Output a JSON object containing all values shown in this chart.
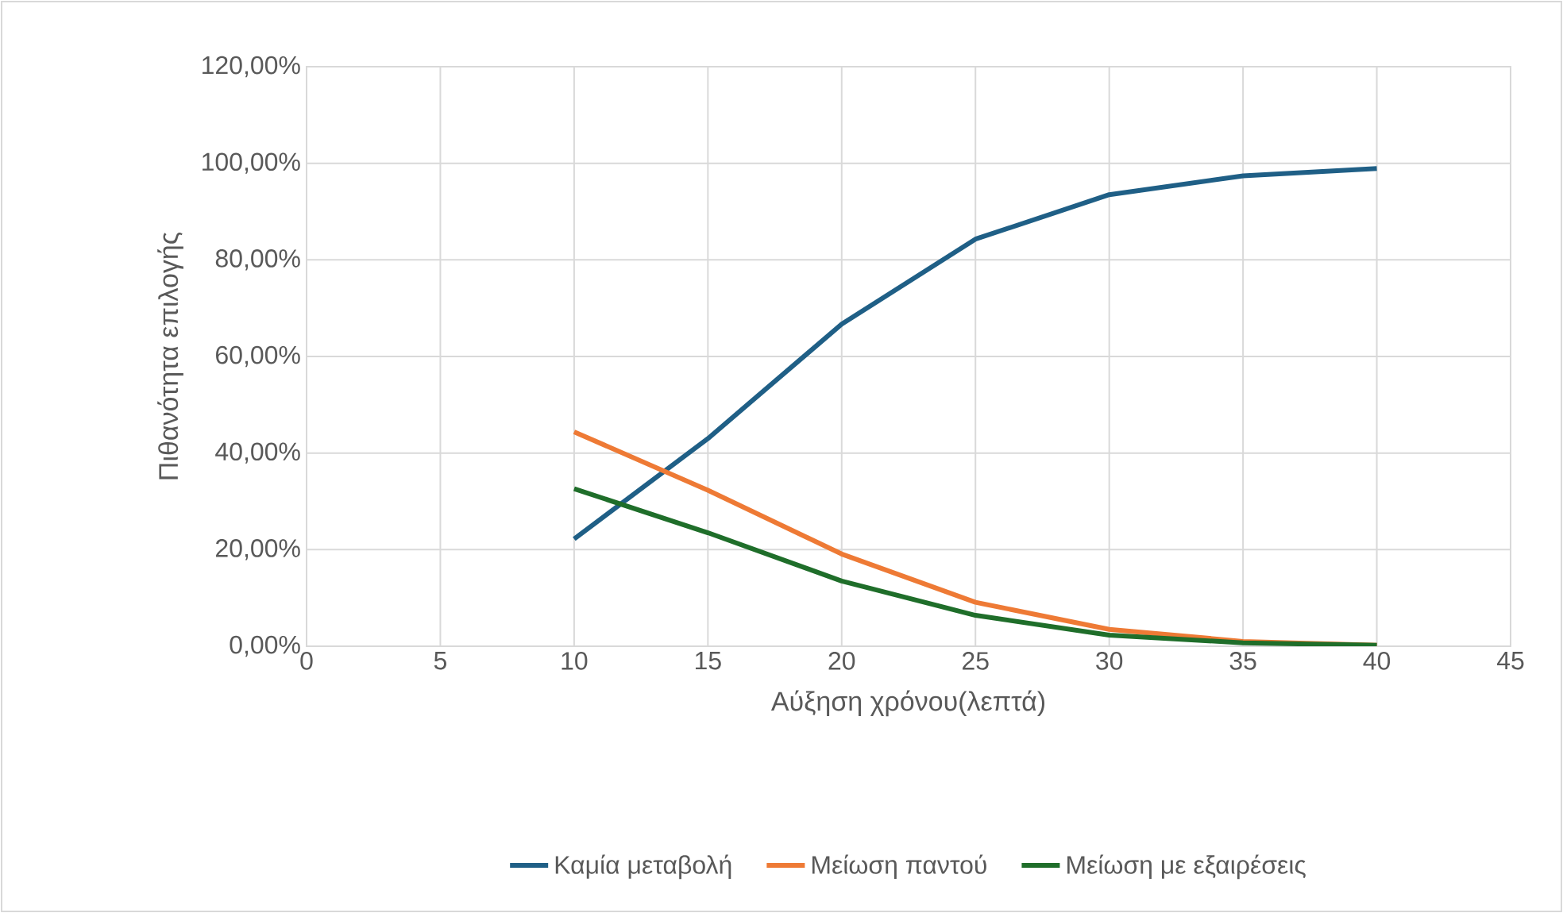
{
  "chart_data": {
    "type": "line",
    "xlabel": "Αύξηση χρόνου(λεπτά)",
    "ylabel": "Πιθανότητα επιλογής",
    "x": [
      10,
      15,
      20,
      25,
      30,
      35,
      40
    ],
    "series": [
      {
        "name": "Καμία μεταβολή",
        "color": "#1f5f86",
        "values": [
          22.2,
          43.0,
          66.7,
          84.3,
          93.5,
          97.4,
          98.9
        ]
      },
      {
        "name": "Μείωση παντού",
        "color": "#ee7a35",
        "values": [
          44.4,
          32.3,
          19.1,
          9.1,
          3.5,
          1.0,
          0.2
        ]
      },
      {
        "name": "Μείωση με εξαιρέσεις",
        "color": "#1f6e2a",
        "values": [
          32.6,
          23.5,
          13.5,
          6.4,
          2.3,
          0.7,
          0.2
        ]
      }
    ],
    "xlim": [
      0,
      45
    ],
    "xticks": [
      0,
      5,
      10,
      15,
      20,
      25,
      30,
      35,
      40,
      45
    ],
    "ylim": [
      0,
      120
    ],
    "yticks": [
      {
        "value": 0,
        "label": "0,00%"
      },
      {
        "value": 20,
        "label": "20,00%"
      },
      {
        "value": 40,
        "label": "40,00%"
      },
      {
        "value": 60,
        "label": "60,00%"
      },
      {
        "value": 80,
        "label": "80,00%"
      },
      {
        "value": 100,
        "label": "100,00%"
      },
      {
        "value": 120,
        "label": "120,00%"
      }
    ],
    "grid": true,
    "legend": "bottom",
    "marker": "none",
    "line_style": "solid"
  }
}
